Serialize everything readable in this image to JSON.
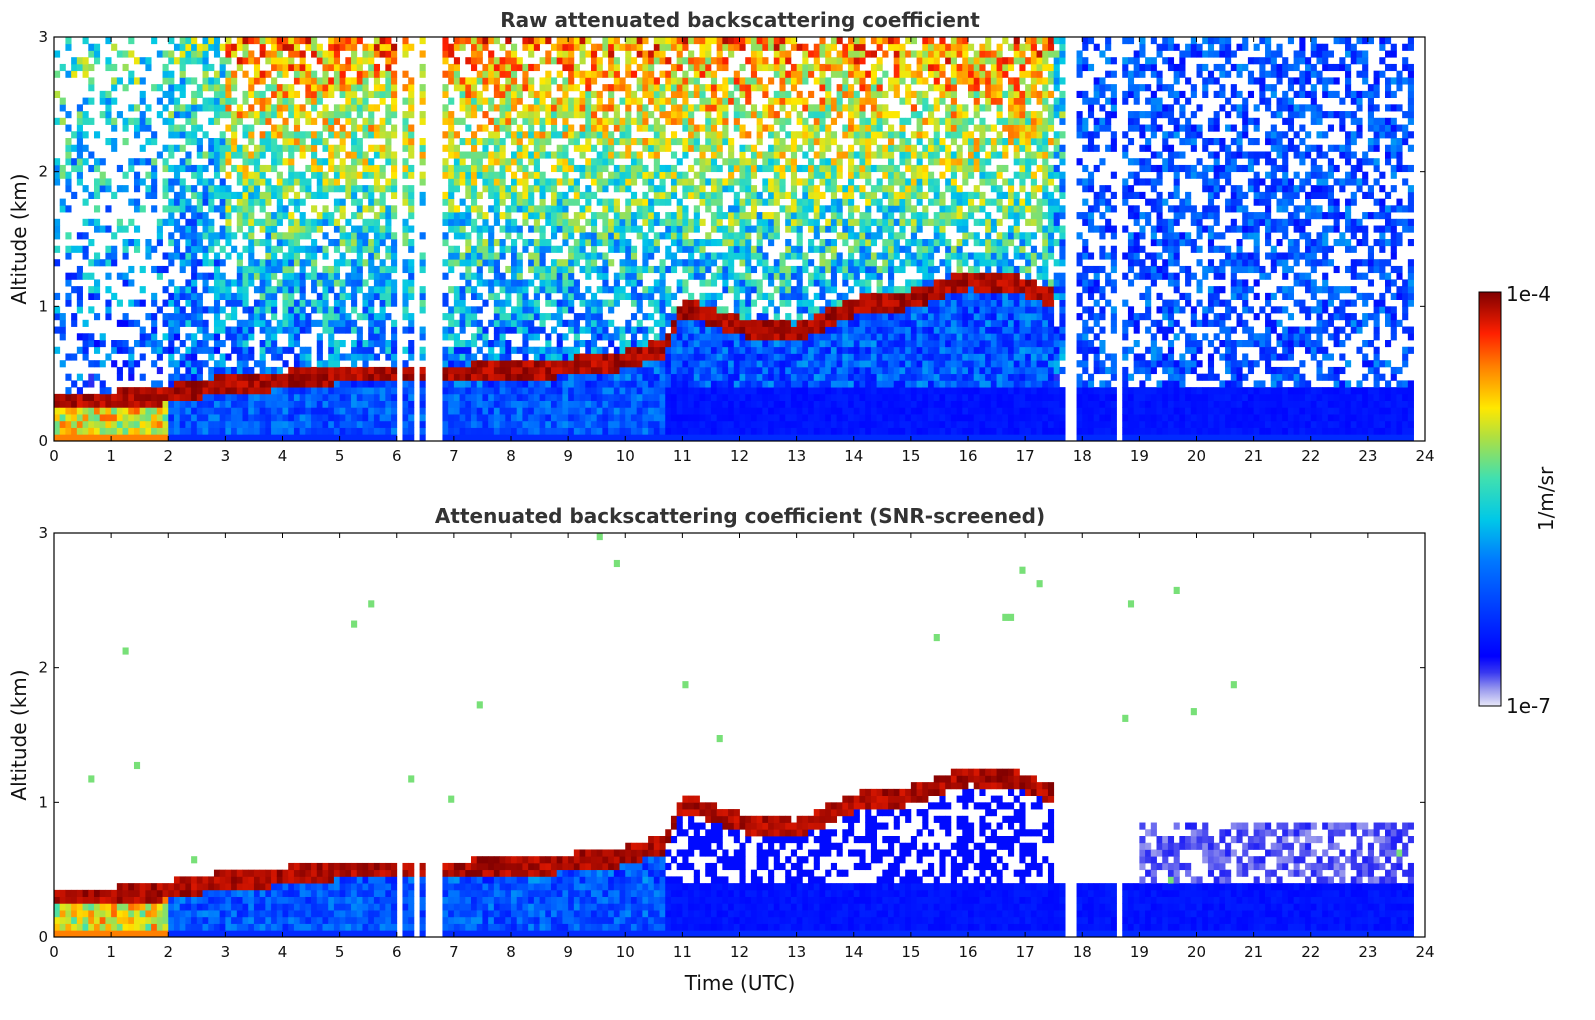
{
  "figure": {
    "xlabel": "Time (UTC)",
    "ylabel": "Altitude (km)",
    "colorbar": {
      "label": "1/m/sr",
      "max_label": "1e-4",
      "min_label": "1e-7",
      "scale": "log",
      "colormap": "jet"
    }
  },
  "chart_data": [
    {
      "type": "heatmap",
      "title": "Raw attenuated backscattering coefficient",
      "xlabel": "",
      "ylabel": "Altitude (km)",
      "xlim": [
        0,
        24
      ],
      "ylim": [
        0,
        3
      ],
      "xticks": [
        "0",
        "1",
        "2",
        "3",
        "4",
        "5",
        "6",
        "7",
        "8",
        "9",
        "10",
        "11",
        "12",
        "13",
        "14",
        "15",
        "16",
        "17",
        "18",
        "19",
        "20",
        "21",
        "22",
        "23",
        "24"
      ],
      "yticks": [
        "0",
        "1",
        "2",
        "3"
      ],
      "data_end_hour": 23.8,
      "data_gaps_hours": [
        [
          6.0,
          6.12
        ],
        [
          6.28,
          6.38
        ],
        [
          6.52,
          6.65
        ],
        [
          6.75,
          6.82
        ],
        [
          17.75,
          17.9
        ],
        [
          18.6,
          18.72
        ]
      ],
      "features": {
        "boundary_layer_top_km": [
          [
            0,
            0.3
          ],
          [
            1,
            0.3
          ],
          [
            2,
            0.35
          ],
          [
            3,
            0.42
          ],
          [
            4,
            0.45
          ],
          [
            5,
            0.5
          ],
          [
            6,
            0.5
          ],
          [
            7,
            0.5
          ],
          [
            8,
            0.52
          ],
          [
            9,
            0.55
          ],
          [
            10,
            0.6
          ],
          [
            10.7,
            0.7
          ],
          [
            11,
            1.0
          ],
          [
            12,
            0.85
          ],
          [
            13,
            0.8
          ],
          [
            14,
            1.0
          ],
          [
            15,
            1.05
          ],
          [
            16,
            1.2
          ],
          [
            17,
            1.15
          ],
          [
            17.5,
            1.05
          ]
        ],
        "high_noise_region": {
          "x_from": 2.0,
          "x_to": 17.5,
          "y_from_km": 1.4
        }
      }
    },
    {
      "type": "heatmap",
      "title": "Attenuated backscattering coefficient (SNR-screened)",
      "xlabel": "Time (UTC)",
      "ylabel": "Altitude (km)",
      "xlim": [
        0,
        24
      ],
      "ylim": [
        0,
        3
      ],
      "xticks": [
        "0",
        "1",
        "2",
        "3",
        "4",
        "5",
        "6",
        "7",
        "8",
        "9",
        "10",
        "11",
        "12",
        "13",
        "14",
        "15",
        "16",
        "17",
        "18",
        "19",
        "20",
        "21",
        "22",
        "23",
        "24"
      ],
      "yticks": [
        "0",
        "1",
        "2",
        "3"
      ],
      "data_end_hour": 23.8,
      "data_gaps_hours": [
        [
          6.0,
          6.12
        ],
        [
          6.28,
          6.38
        ],
        [
          6.52,
          6.65
        ],
        [
          6.75,
          6.82
        ],
        [
          17.75,
          17.9
        ],
        [
          18.6,
          18.72
        ]
      ],
      "features": {
        "boundary_layer_top_km": [
          [
            0,
            0.3
          ],
          [
            1,
            0.3
          ],
          [
            2,
            0.35
          ],
          [
            3,
            0.42
          ],
          [
            4,
            0.45
          ],
          [
            5,
            0.5
          ],
          [
            6,
            0.5
          ],
          [
            7,
            0.5
          ],
          [
            8,
            0.52
          ],
          [
            9,
            0.55
          ],
          [
            10,
            0.6
          ],
          [
            10.7,
            0.7
          ],
          [
            11,
            1.0
          ],
          [
            12,
            0.85
          ],
          [
            13,
            0.8
          ],
          [
            14,
            1.0
          ],
          [
            15,
            1.05
          ],
          [
            16,
            1.2
          ],
          [
            17,
            1.15
          ],
          [
            17.5,
            1.05
          ]
        ],
        "screened_out": "noise above cloud/aerosol layer removed"
      }
    }
  ]
}
